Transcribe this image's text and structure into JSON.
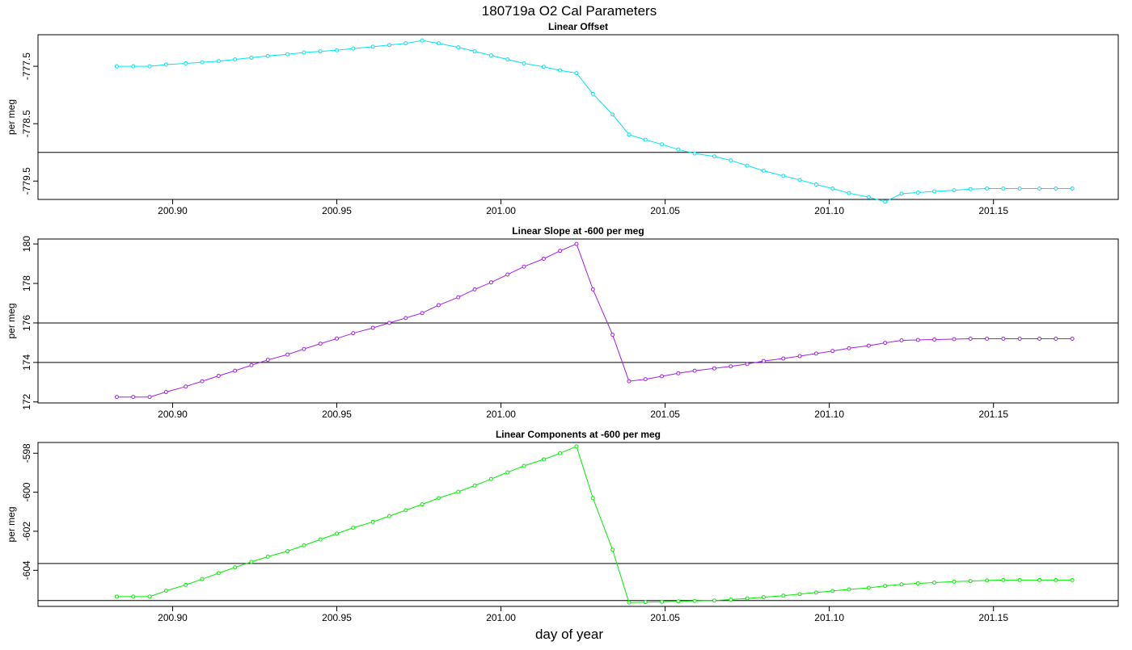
{
  "title": "180719a   O2 Cal Parameters",
  "xlabel": "day of year",
  "chart_data": [
    {
      "type": "line",
      "title": "Linear Offset",
      "ylabel": "per meg",
      "color": "#00e5ee",
      "xlim": [
        200.859,
        201.188
      ],
      "ylim": [
        -779.82,
        -776.95
      ],
      "xticks": [
        200.9,
        200.95,
        201.0,
        201.05,
        201.1,
        201.15
      ],
      "xtick_labels": [
        "200.90",
        "200.95",
        "201.00",
        "201.05",
        "201.10",
        "201.15"
      ],
      "yticks": [
        -777.5,
        -778.5,
        -779.5
      ],
      "ytick_labels": [
        "-777.5",
        "-778.5",
        "-779.5"
      ],
      "hlines": [
        -779.0
      ],
      "x": [
        200.883,
        200.888,
        200.893,
        200.898,
        200.904,
        200.909,
        200.914,
        200.919,
        200.924,
        200.929,
        200.935,
        200.94,
        200.945,
        200.95,
        200.955,
        200.961,
        200.966,
        200.971,
        200.976,
        200.981,
        200.987,
        200.992,
        200.997,
        201.002,
        201.007,
        201.013,
        201.018,
        201.023,
        201.028,
        201.034,
        201.039,
        201.044,
        201.049,
        201.054,
        201.059,
        201.065,
        201.07,
        201.075,
        201.08,
        201.086,
        201.091,
        201.096,
        201.101,
        201.106,
        201.112,
        201.117,
        201.122,
        201.127,
        201.132,
        201.138,
        201.143,
        201.148,
        201.153,
        201.158,
        201.164,
        201.169,
        201.174
      ],
      "y": [
        -777.5,
        -777.5,
        -777.5,
        -777.47,
        -777.45,
        -777.43,
        -777.41,
        -777.38,
        -777.35,
        -777.32,
        -777.29,
        -777.26,
        -777.24,
        -777.22,
        -777.19,
        -777.16,
        -777.13,
        -777.1,
        -777.05,
        -777.1,
        -777.17,
        -777.24,
        -777.31,
        -777.38,
        -777.45,
        -777.51,
        -777.57,
        -777.62,
        -777.98,
        -778.34,
        -778.69,
        -778.78,
        -778.86,
        -778.95,
        -779.02,
        -779.07,
        -779.14,
        -779.23,
        -779.32,
        -779.41,
        -779.48,
        -779.56,
        -779.63,
        -779.71,
        -779.78,
        -779.86,
        -779.72,
        -779.7,
        -779.68,
        -779.66,
        -779.64,
        -779.63,
        -779.63,
        -779.63,
        -779.63,
        -779.63,
        -779.63
      ]
    },
    {
      "type": "line",
      "title": "Linear Slope at -600 per meg",
      "ylabel": "per meg",
      "color": "#a020f0",
      "xlim": [
        200.859,
        201.188
      ],
      "ylim": [
        171.95,
        180.25
      ],
      "xticks": [
        200.9,
        200.95,
        201.0,
        201.05,
        201.1,
        201.15
      ],
      "xtick_labels": [
        "200.90",
        "200.95",
        "201.00",
        "201.05",
        "201.10",
        "201.15"
      ],
      "yticks": [
        172,
        174,
        176,
        178,
        180
      ],
      "ytick_labels": [
        "172",
        "174",
        "176",
        "178",
        "180"
      ],
      "hlines": [
        176,
        174
      ],
      "x": [
        200.883,
        200.888,
        200.893,
        200.898,
        200.904,
        200.909,
        200.914,
        200.919,
        200.924,
        200.929,
        200.935,
        200.94,
        200.945,
        200.95,
        200.955,
        200.961,
        200.966,
        200.971,
        200.976,
        200.981,
        200.987,
        200.992,
        200.997,
        201.002,
        201.007,
        201.013,
        201.018,
        201.023,
        201.028,
        201.034,
        201.039,
        201.044,
        201.049,
        201.054,
        201.059,
        201.065,
        201.07,
        201.075,
        201.08,
        201.086,
        201.091,
        201.096,
        201.101,
        201.106,
        201.112,
        201.117,
        201.122,
        201.127,
        201.132,
        201.138,
        201.143,
        201.148,
        201.153,
        201.158,
        201.164,
        201.169,
        201.174
      ],
      "y": [
        172.25,
        172.25,
        172.25,
        172.5,
        172.78,
        173.05,
        173.32,
        173.58,
        173.86,
        174.13,
        174.4,
        174.68,
        174.95,
        175.21,
        175.48,
        175.75,
        176.0,
        176.25,
        176.5,
        176.9,
        177.3,
        177.7,
        178.05,
        178.45,
        178.85,
        179.25,
        179.65,
        180.0,
        177.7,
        175.4,
        173.05,
        173.15,
        173.3,
        173.45,
        173.58,
        173.7,
        173.8,
        173.92,
        174.07,
        174.2,
        174.32,
        174.45,
        174.58,
        174.72,
        174.85,
        174.99,
        175.12,
        175.14,
        175.16,
        175.18,
        175.2,
        175.2,
        175.2,
        175.2,
        175.2,
        175.2,
        175.2
      ]
    },
    {
      "type": "line",
      "title": "Linear Components at -600 per meg",
      "ylabel": "per meg",
      "color": "#00ee00",
      "xlim": [
        200.859,
        201.188
      ],
      "ylim": [
        -605.85,
        -597.45
      ],
      "xticks": [
        200.9,
        200.95,
        201.0,
        201.05,
        201.1,
        201.15
      ],
      "xtick_labels": [
        "200.90",
        "200.95",
        "201.00",
        "201.05",
        "201.10",
        "201.15"
      ],
      "yticks": [
        -598,
        -600,
        -602,
        -604
      ],
      "ytick_labels": [
        "-598",
        "-600",
        "-602",
        "-604"
      ],
      "hlines": [
        -603.65,
        -605.55
      ],
      "x": [
        200.883,
        200.888,
        200.893,
        200.898,
        200.904,
        200.909,
        200.914,
        200.919,
        200.924,
        200.929,
        200.935,
        200.94,
        200.945,
        200.95,
        200.955,
        200.961,
        200.966,
        200.971,
        200.976,
        200.981,
        200.987,
        200.992,
        200.997,
        201.002,
        201.007,
        201.013,
        201.018,
        201.023,
        201.028,
        201.034,
        201.039,
        201.044,
        201.049,
        201.054,
        201.059,
        201.065,
        201.07,
        201.075,
        201.08,
        201.086,
        201.091,
        201.096,
        201.101,
        201.106,
        201.112,
        201.117,
        201.122,
        201.127,
        201.132,
        201.138,
        201.143,
        201.148,
        201.153,
        201.158,
        201.164,
        201.169,
        201.174
      ],
      "y": [
        -605.35,
        -605.35,
        -605.35,
        -605.05,
        -604.75,
        -604.45,
        -604.15,
        -603.85,
        -603.57,
        -603.3,
        -603.02,
        -602.72,
        -602.42,
        -602.12,
        -601.82,
        -601.52,
        -601.22,
        -600.92,
        -600.62,
        -600.3,
        -599.98,
        -599.66,
        -599.32,
        -598.98,
        -598.65,
        -598.32,
        -598.0,
        -597.65,
        -600.3,
        -602.95,
        -605.65,
        -605.63,
        -605.61,
        -605.59,
        -605.57,
        -605.55,
        -605.5,
        -605.44,
        -605.38,
        -605.3,
        -605.22,
        -605.14,
        -605.06,
        -604.98,
        -604.9,
        -604.8,
        -604.72,
        -604.67,
        -604.63,
        -604.58,
        -604.55,
        -604.52,
        -604.5,
        -604.5,
        -604.5,
        -604.5,
        -604.5
      ]
    }
  ]
}
